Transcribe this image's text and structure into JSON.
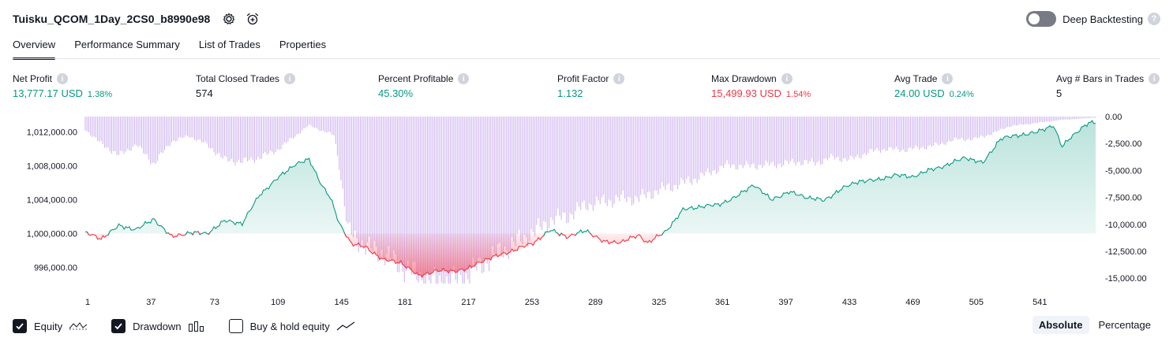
{
  "header": {
    "title": "Tuisku_QCOM_1Day_2CS0_b8990e98",
    "deep_backtesting_label": "Deep Backtesting"
  },
  "tabs": [
    {
      "label": "Overview",
      "active": true
    },
    {
      "label": "Performance Summary",
      "active": false
    },
    {
      "label": "List of Trades",
      "active": false
    },
    {
      "label": "Properties",
      "active": false
    }
  ],
  "metrics": [
    {
      "label": "Net Profit",
      "value": "13,777.17 USD",
      "pct": "1.38%",
      "color": "green"
    },
    {
      "label": "Total Closed Trades",
      "value": "574",
      "pct": "",
      "color": "dark"
    },
    {
      "label": "Percent Profitable",
      "value": "45.30%",
      "pct": "",
      "color": "green"
    },
    {
      "label": "Profit Factor",
      "value": "1.132",
      "pct": "",
      "color": "green"
    },
    {
      "label": "Max Drawdown",
      "value": "15,499.93 USD",
      "pct": "1.54%",
      "color": "red"
    },
    {
      "label": "Avg Trade",
      "value": "24.00 USD",
      "pct": "0.24%",
      "color": "green"
    },
    {
      "label": "Avg # Bars in Trades",
      "value": "5",
      "pct": "",
      "color": "dark"
    }
  ],
  "chart_data": {
    "type": "area",
    "x_ticks": [
      "1",
      "37",
      "73",
      "109",
      "145",
      "181",
      "217",
      "253",
      "289",
      "325",
      "361",
      "397",
      "433",
      "469",
      "505",
      "541"
    ],
    "x_range": [
      1,
      574
    ],
    "equity_axis": {
      "ticks": [
        "1,012,000.00",
        "1,008,000.00",
        "1,004,000.00",
        "1,000,000.00",
        "996,000.00"
      ],
      "range": [
        994100,
        1013800
      ],
      "baseline": 1000000
    },
    "drawdown_axis": {
      "ticks": [
        "0.00",
        "-2,500.00",
        "-5,000.00",
        "-7,500.00",
        "-10,000.00",
        "-12,500.00",
        "-15,000.00"
      ],
      "range": [
        -15500,
        0
      ]
    },
    "equity_series": {
      "name": "Equity",
      "x": [
        1,
        10,
        20,
        30,
        40,
        50,
        60,
        70,
        80,
        90,
        100,
        110,
        120,
        128,
        135,
        140,
        145,
        148,
        152,
        160,
        170,
        180,
        190,
        200,
        210,
        218,
        225,
        235,
        245,
        255,
        265,
        275,
        285,
        295,
        305,
        315,
        320,
        330,
        340,
        350,
        360,
        370,
        380,
        390,
        400,
        410,
        420,
        430,
        440,
        450,
        460,
        470,
        480,
        490,
        500,
        510,
        520,
        530,
        540,
        550,
        555,
        560,
        565,
        570,
        574
      ],
      "values": [
        1000100,
        999400,
        1000900,
        1000500,
        1001700,
        999600,
        1000100,
        1000000,
        1001500,
        1001200,
        1004600,
        1006500,
        1008200,
        1008700,
        1005800,
        1004200,
        1001200,
        1000200,
        998800,
        998400,
        996900,
        996600,
        995000,
        995600,
        995600,
        995800,
        996700,
        997400,
        998100,
        998900,
        1000400,
        999600,
        1000400,
        999000,
        999000,
        999800,
        998900,
        1000200,
        1002800,
        1003200,
        1003400,
        1004300,
        1005800,
        1004000,
        1004900,
        1004300,
        1003900,
        1005300,
        1006200,
        1006300,
        1006900,
        1006700,
        1007500,
        1008100,
        1009000,
        1008300,
        1011200,
        1011600,
        1011900,
        1012800,
        1010200,
        1011400,
        1012300,
        1013000,
        1013100
      ]
    },
    "drawdown_series": {
      "name": "Drawdown",
      "x": [
        1,
        10,
        20,
        30,
        40,
        50,
        60,
        70,
        80,
        90,
        100,
        110,
        120,
        128,
        135,
        142,
        145,
        150,
        160,
        170,
        180,
        190,
        200,
        210,
        218,
        225,
        235,
        245,
        255,
        265,
        275,
        285,
        295,
        305,
        315,
        325,
        335,
        345,
        355,
        365,
        375,
        385,
        395,
        405,
        415,
        425,
        435,
        445,
        455,
        465,
        475,
        485,
        495,
        505,
        515,
        525,
        535,
        545,
        555,
        565,
        574
      ],
      "values": [
        -1200,
        -2500,
        -3600,
        -2600,
        -4400,
        -2300,
        -1800,
        -2600,
        -4000,
        -4200,
        -3800,
        -3100,
        -1800,
        -800,
        -1300,
        -1700,
        -4500,
        -10600,
        -12100,
        -12700,
        -13900,
        -14800,
        -15400,
        -15300,
        -14800,
        -13800,
        -12700,
        -11700,
        -10800,
        -9600,
        -9200,
        -8200,
        -7900,
        -7600,
        -7600,
        -6900,
        -6400,
        -5900,
        -5200,
        -4500,
        -4600,
        -4500,
        -4400,
        -4200,
        -4300,
        -3800,
        -4000,
        -3300,
        -3000,
        -3100,
        -2900,
        -2600,
        -2100,
        -2100,
        -1600,
        -900,
        -700,
        -500,
        -300,
        -200,
        -100
      ]
    }
  },
  "legend": {
    "equity_label": "Equity",
    "drawdown_label": "Drawdown",
    "buyhold_label": "Buy & hold equity",
    "equity_checked": true,
    "drawdown_checked": true,
    "buyhold_checked": false
  },
  "modes": {
    "absolute": "Absolute",
    "percentage": "Percentage",
    "active": "absolute"
  },
  "colors": {
    "equity_line": "#089981",
    "equity_fill": "#d4f0e9",
    "loss_line": "#f23645",
    "loss_fill": "#f8b3bc",
    "drawdown_bar": "#cfb4f0"
  }
}
